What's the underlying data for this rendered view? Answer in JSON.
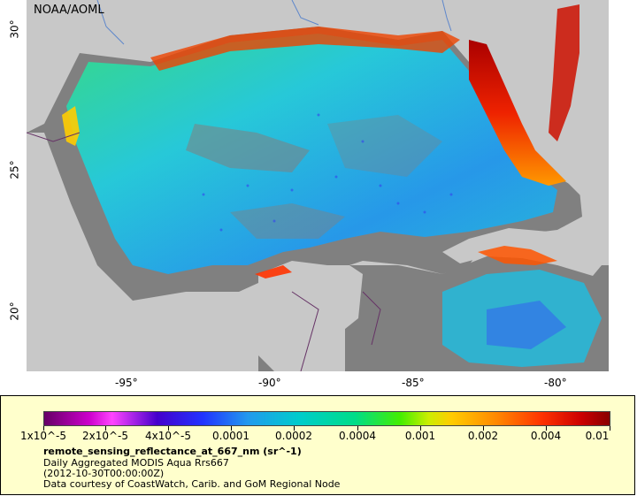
{
  "map": {
    "credit": "NOAA/AOML",
    "lat_labels": [
      "30°",
      "25°",
      "20°"
    ],
    "lon_labels": [
      "-95°",
      "-90°",
      "-85°",
      "-80°"
    ],
    "colors": {
      "land": "#c8c8c8",
      "no_data": "#808080",
      "background": "#ffffcc"
    }
  },
  "legend": {
    "scale_labels": [
      "1x10^-5",
      "2x10^-5",
      "4x10^-5",
      "0.0001",
      "0.0002",
      "0.0004",
      "0.001",
      "0.002",
      "0.004",
      "0.01"
    ],
    "variable_title": "remote_sensing_reflectance_at_667_nm (sr^-1)",
    "dataset": "Daily Aggregated MODIS Aqua Rrs667",
    "time": "(2012-10-30T00:00:00Z)",
    "credit": "Data courtesy of CoastWatch, Carib. and GoM Regional Node"
  }
}
